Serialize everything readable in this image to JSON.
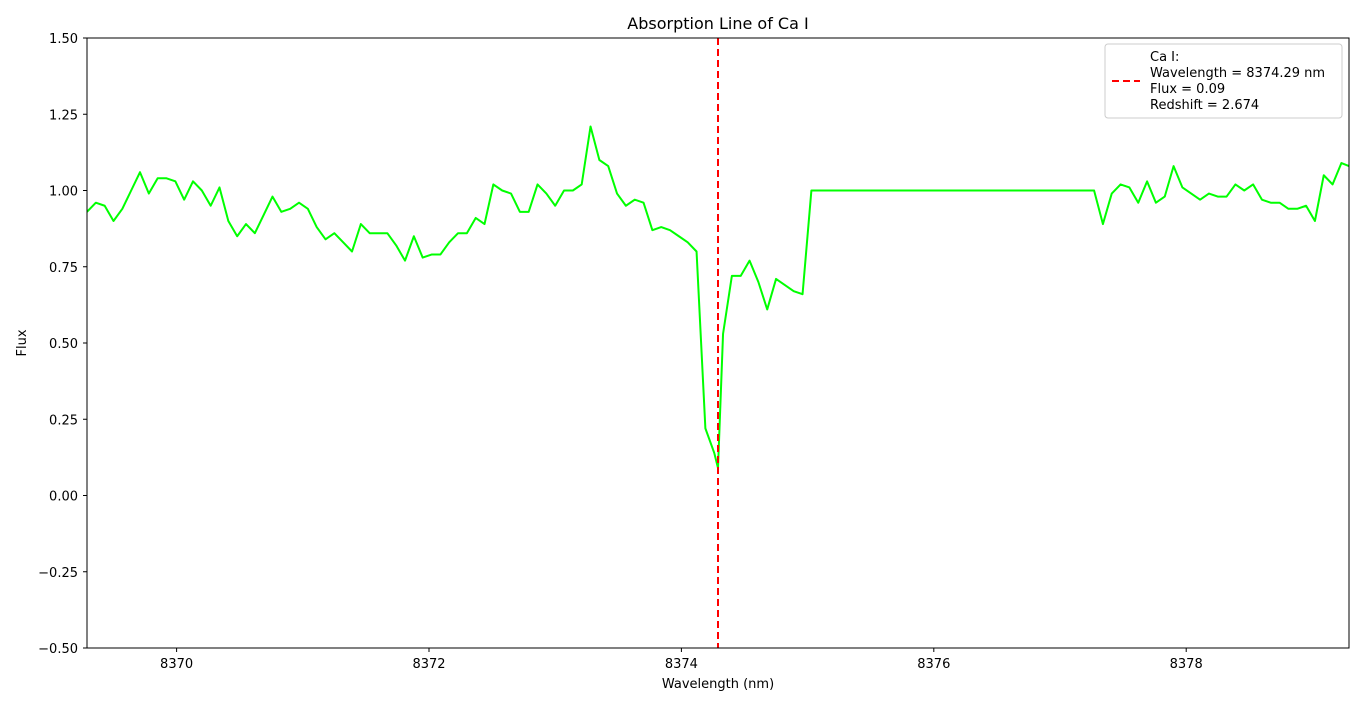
{
  "chart_data": {
    "type": "line",
    "title": "Absorption Line of Ca I",
    "xlabel": "Wavelength (nm)",
    "ylabel": "Flux",
    "xlim": [
      8369.29,
      8379.29
    ],
    "ylim": [
      -0.5,
      1.5
    ],
    "xticks": [
      8370,
      8372,
      8374,
      8376,
      8378
    ],
    "yticks": [
      -0.5,
      -0.25,
      0.0,
      0.25,
      0.5,
      0.75,
      1.0,
      1.25,
      1.5
    ],
    "ytick_labels": [
      "−0.50",
      "−0.25",
      "0.00",
      "0.25",
      "0.50",
      "0.75",
      "1.00",
      "1.25",
      "1.50"
    ],
    "grid": false,
    "legend_position": "top-right",
    "series": [
      {
        "color": "#00ff00",
        "x": [
          8369.29,
          8369.36,
          8369.43,
          8369.5,
          8369.57,
          8369.64,
          8369.71,
          8369.78,
          8369.85,
          8369.92,
          8369.99,
          8370.06,
          8370.13,
          8370.2,
          8370.27,
          8370.34,
          8370.41,
          8370.48,
          8370.55,
          8370.62,
          8370.69,
          8370.76,
          8370.83,
          8370.9,
          8370.97,
          8371.04,
          8371.11,
          8371.18,
          8371.25,
          8371.32,
          8371.39,
          8371.46,
          8371.53,
          8371.6,
          8371.67,
          8371.74,
          8371.81,
          8371.88,
          8371.95,
          8372.02,
          8372.09,
          8372.16,
          8372.23,
          8372.3,
          8372.37,
          8372.44,
          8372.51,
          8372.58,
          8372.65,
          8372.72,
          8372.79,
          8372.86,
          8372.93,
          8373.0,
          8373.07,
          8373.14,
          8373.21,
          8373.28,
          8373.35,
          8373.42,
          8373.49,
          8373.56,
          8373.63,
          8373.7,
          8373.77,
          8373.84,
          8373.91,
          8373.98,
          8374.05,
          8374.12,
          8374.19,
          8374.26,
          8374.29,
          8374.33,
          8374.4,
          8374.47,
          8374.54,
          8374.61,
          8374.68,
          8374.75,
          8374.82,
          8374.89,
          8374.96,
          8375.03,
          8375.1,
          8377.27,
          8377.34,
          8377.41,
          8377.48,
          8377.55,
          8377.62,
          8377.69,
          8377.76,
          8377.83,
          8377.9,
          8377.97,
          8378.04,
          8378.11,
          8378.18,
          8378.25,
          8378.32,
          8378.39,
          8378.46,
          8378.53,
          8378.6,
          8378.67,
          8378.74,
          8378.81,
          8378.88,
          8378.95,
          8379.02,
          8379.09,
          8379.16,
          8379.23,
          8379.29
        ],
        "y": [
          0.93,
          0.96,
          0.95,
          0.9,
          0.94,
          1.0,
          1.06,
          0.99,
          1.04,
          1.04,
          1.03,
          0.97,
          1.03,
          1.0,
          0.95,
          1.01,
          0.9,
          0.85,
          0.89,
          0.86,
          0.92,
          0.98,
          0.93,
          0.94,
          0.96,
          0.94,
          0.88,
          0.84,
          0.86,
          0.83,
          0.8,
          0.89,
          0.86,
          0.86,
          0.86,
          0.82,
          0.77,
          0.85,
          0.78,
          0.79,
          0.79,
          0.83,
          0.86,
          0.86,
          0.91,
          0.89,
          1.02,
          1.0,
          0.99,
          0.93,
          0.93,
          1.02,
          0.99,
          0.95,
          1.0,
          1.0,
          1.02,
          1.21,
          1.1,
          1.08,
          0.99,
          0.95,
          0.97,
          0.96,
          0.87,
          0.88,
          0.87,
          0.85,
          0.83,
          0.8,
          0.22,
          0.14,
          0.09,
          0.53,
          0.72,
          0.72,
          0.77,
          0.7,
          0.61,
          0.71,
          0.69,
          0.67,
          0.66,
          1.0,
          1.0,
          1.0,
          0.89,
          0.99,
          1.02,
          1.01,
          0.96,
          1.03,
          0.96,
          0.98,
          1.08,
          1.01,
          0.99,
          0.97,
          0.99,
          0.98,
          0.98,
          1.02,
          1.0,
          1.02,
          0.97,
          0.96,
          0.96,
          0.94,
          0.94,
          0.95,
          0.9,
          1.05,
          1.02,
          1.09,
          1.08
        ]
      }
    ],
    "vline": {
      "x": 8374.29,
      "color": "#ff0000",
      "style": "dashed"
    },
    "legend": {
      "line1": "Ca I:",
      "line2": "Wavelength = 8374.29 nm",
      "line3": "Flux = 0.09",
      "line4": "Redshift = 2.674"
    }
  }
}
